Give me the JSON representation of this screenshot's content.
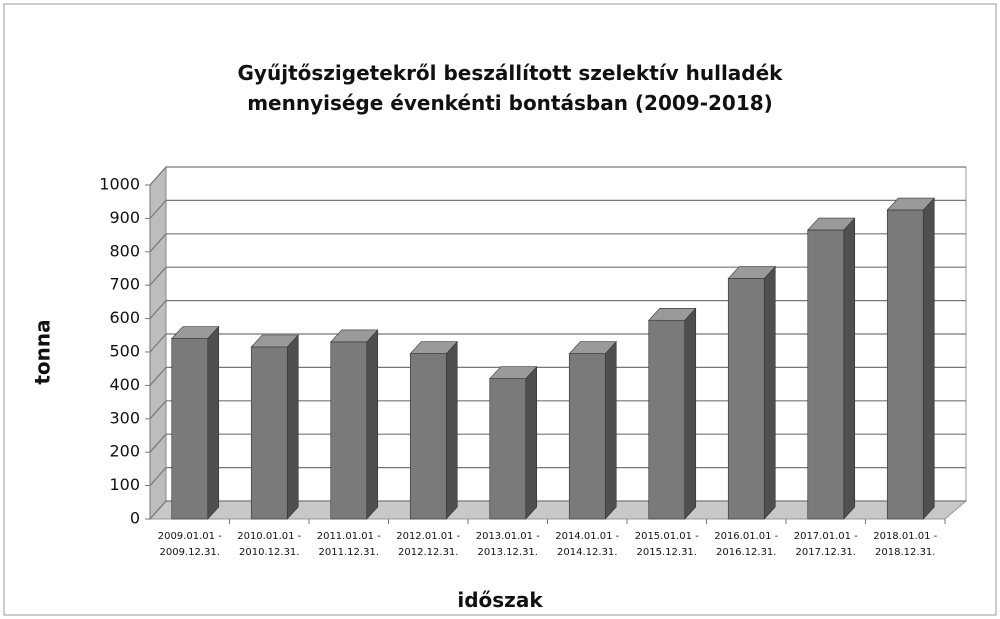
{
  "chart_data": {
    "type": "bar",
    "title": "Gyűjtőszigetekről beszállított szelektív hulladék mennyisége évenkénti bontásban (2009-2018)",
    "x_label": "időszak",
    "y_label": "tonna",
    "categories": [
      "2009.01.01 - 2009.12.31.",
      "2010.01.01 - 2010.12.31.",
      "2011.01.01 - 2011.12.31.",
      "2012.01.01 - 2012.12.31.",
      "2013.01.01 - 2013.12.31.",
      "2014.01.01 - 2014.12.31.",
      "2015.01.01 - 2015.12.31.",
      "2016.01.01 - 2016.12.31.",
      "2017.01.01 - 2017.12.31.",
      "2018.01.01 - 2018.12.31."
    ],
    "values": [
      540,
      515,
      530,
      495,
      420,
      495,
      595,
      720,
      865,
      925
    ],
    "color": "#7a7a7a",
    "ylim": [
      0,
      1000
    ],
    "yticks": [
      0,
      100,
      200,
      300,
      400,
      500,
      600,
      700,
      800,
      900,
      1000
    ],
    "grid": true
  }
}
